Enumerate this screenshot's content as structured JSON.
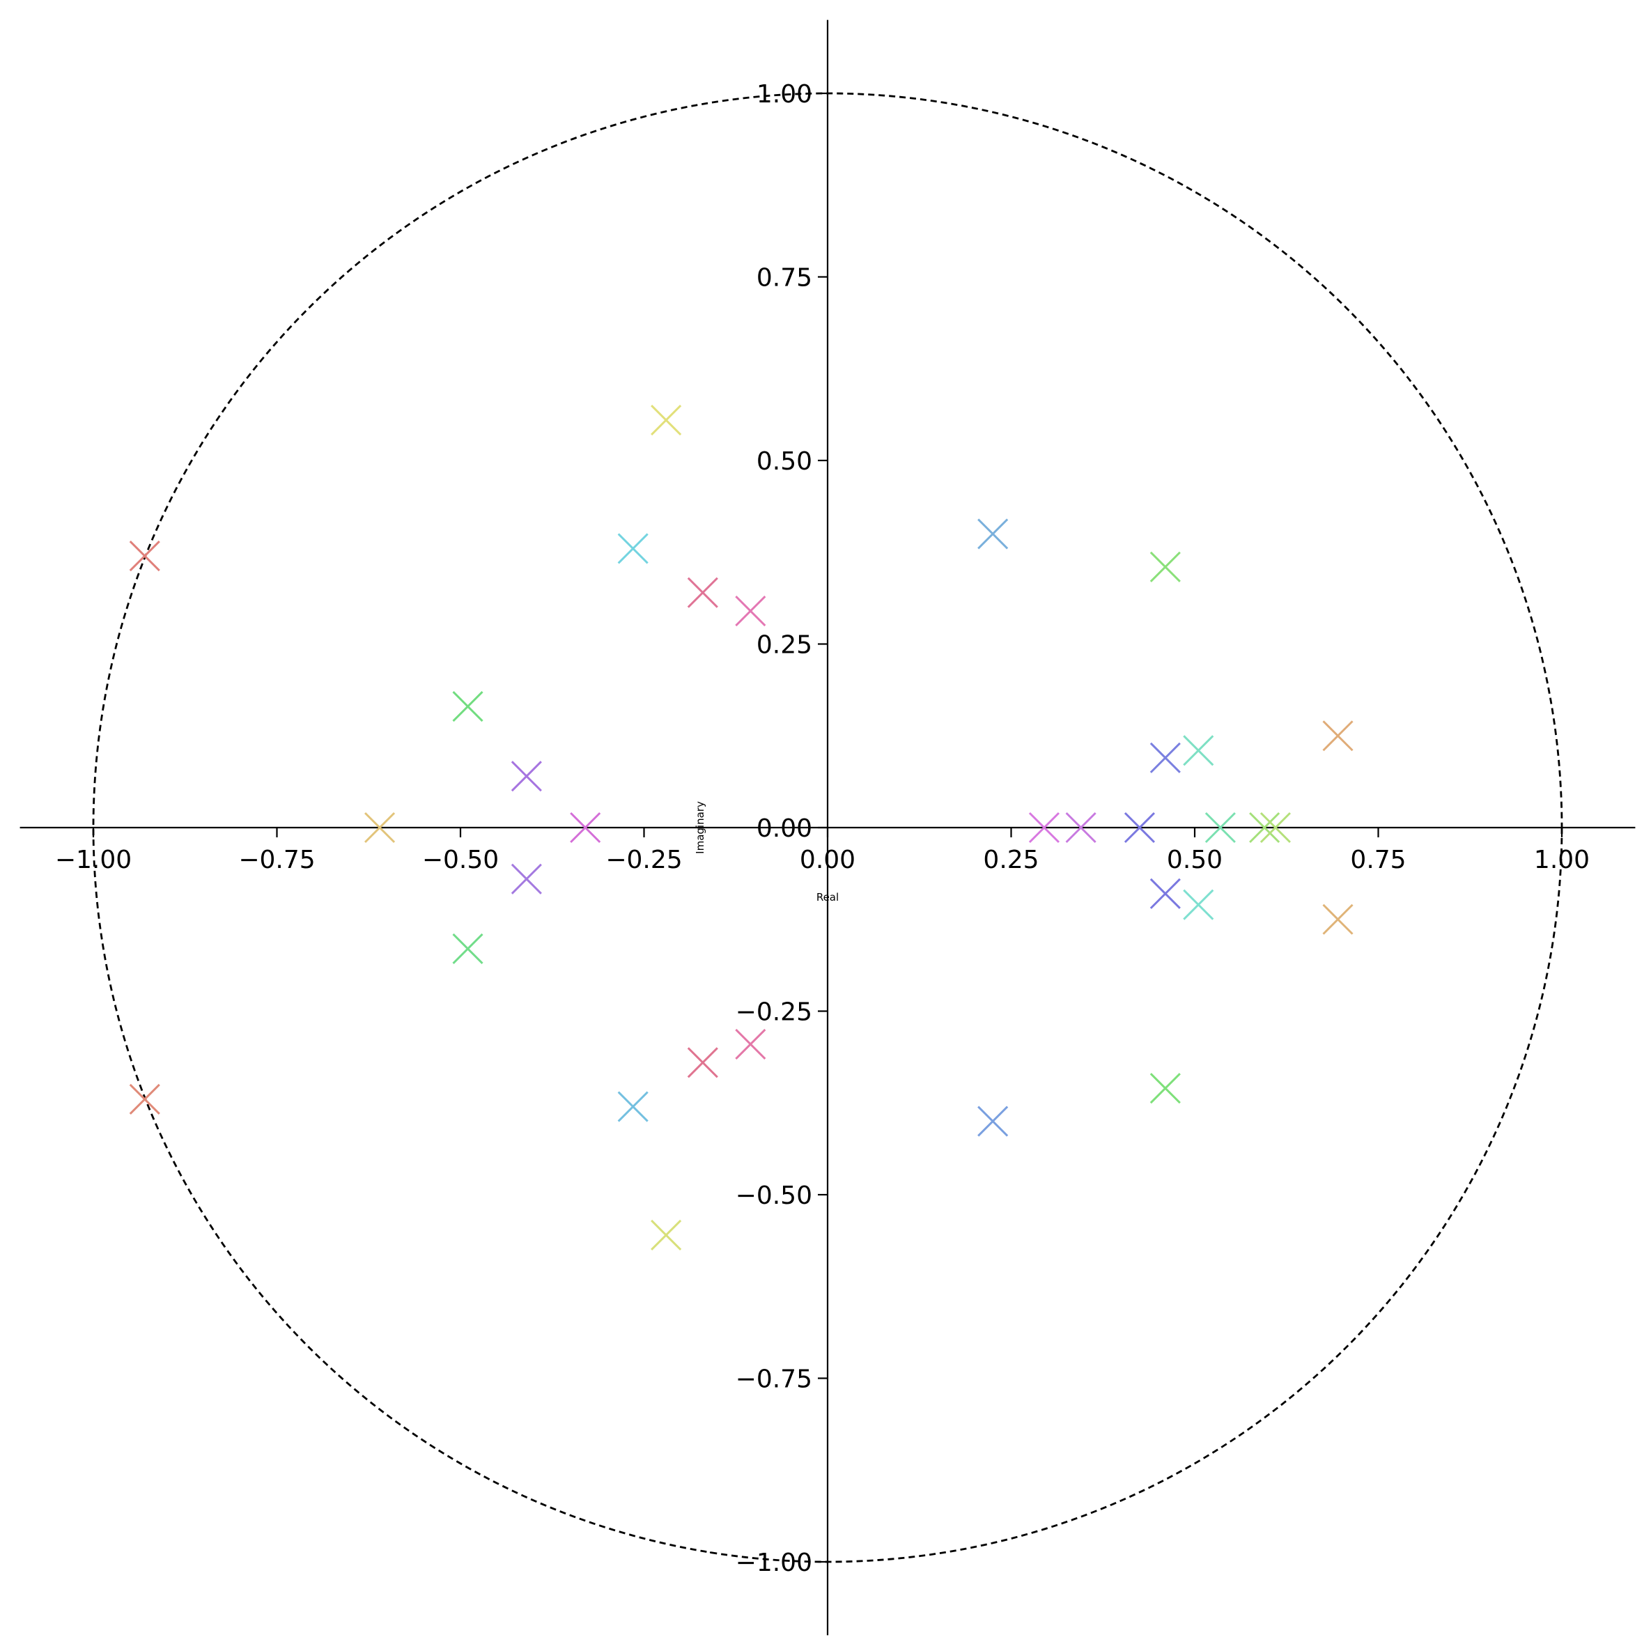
{
  "chart_data": {
    "type": "scatter",
    "title": "",
    "xlabel": "Real",
    "ylabel": "Imaginary",
    "xlim": [
      -1.1,
      1.1
    ],
    "ylim": [
      -1.1,
      1.1
    ],
    "xticks": [
      "−1.00",
      "−0.75",
      "−0.50",
      "−0.25",
      "0.00",
      "0.25",
      "0.50",
      "0.75",
      "1.00"
    ],
    "yticks": [
      "−1.00",
      "−0.75",
      "−0.50",
      "−0.25",
      "0.00",
      "0.25",
      "0.50",
      "0.75",
      "1.00"
    ],
    "xtick_values": [
      -1,
      -0.75,
      -0.5,
      -0.25,
      0,
      0.25,
      0.5,
      0.75,
      1
    ],
    "ytick_values": [
      -1,
      -0.75,
      -0.5,
      -0.25,
      0,
      0.25,
      0.5,
      0.75,
      1
    ],
    "grid": false,
    "legend": "none",
    "marker": "x",
    "reference": {
      "shape": "unit-circle",
      "radius": 1,
      "style": "dashed",
      "color": "#000000"
    },
    "points": [
      {
        "x": -0.93,
        "y": 0.37,
        "color": "#e0807a"
      },
      {
        "x": -0.93,
        "y": -0.37,
        "color": "#e08a78"
      },
      {
        "x": -0.61,
        "y": 0.0,
        "color": "#e2c47a"
      },
      {
        "x": -0.49,
        "y": 0.165,
        "color": "#72dd80"
      },
      {
        "x": -0.49,
        "y": -0.165,
        "color": "#72dd8a"
      },
      {
        "x": -0.41,
        "y": 0.07,
        "color": "#a674e0"
      },
      {
        "x": -0.41,
        "y": -0.07,
        "color": "#a47ae0"
      },
      {
        "x": -0.33,
        "y": 0.0,
        "color": "#d46ed8"
      },
      {
        "x": -0.265,
        "y": 0.38,
        "color": "#74d4e0"
      },
      {
        "x": -0.265,
        "y": -0.38,
        "color": "#74c0e0"
      },
      {
        "x": -0.22,
        "y": 0.555,
        "color": "#e2e07a"
      },
      {
        "x": -0.22,
        "y": -0.555,
        "color": "#d8e07a"
      },
      {
        "x": -0.17,
        "y": 0.32,
        "color": "#e07496"
      },
      {
        "x": -0.17,
        "y": -0.32,
        "color": "#e07490"
      },
      {
        "x": -0.105,
        "y": 0.295,
        "color": "#e478b4"
      },
      {
        "x": -0.105,
        "y": -0.295,
        "color": "#e478a8"
      },
      {
        "x": 0.225,
        "y": 0.4,
        "color": "#7ab0dc"
      },
      {
        "x": 0.225,
        "y": -0.4,
        "color": "#7aa0e0"
      },
      {
        "x": 0.295,
        "y": 0.0,
        "color": "#d878e0"
      },
      {
        "x": 0.345,
        "y": 0.0,
        "color": "#c87ae0"
      },
      {
        "x": 0.425,
        "y": 0.0,
        "color": "#7a78e0"
      },
      {
        "x": 0.46,
        "y": 0.095,
        "color": "#7a80e0"
      },
      {
        "x": 0.46,
        "y": -0.09,
        "color": "#7a78e0"
      },
      {
        "x": 0.46,
        "y": 0.355,
        "color": "#8ae07a"
      },
      {
        "x": 0.46,
        "y": -0.355,
        "color": "#7ee07a"
      },
      {
        "x": 0.505,
        "y": 0.105,
        "color": "#7ee0c4"
      },
      {
        "x": 0.505,
        "y": -0.105,
        "color": "#7ee0d0"
      },
      {
        "x": 0.535,
        "y": 0.0,
        "color": "#7ae0b0"
      },
      {
        "x": 0.595,
        "y": 0.0,
        "color": "#a4e07a"
      },
      {
        "x": 0.61,
        "y": 0.0,
        "color": "#b4e07a"
      },
      {
        "x": 0.695,
        "y": 0.125,
        "color": "#e0ac78"
      },
      {
        "x": 0.695,
        "y": -0.125,
        "color": "#e0b478"
      }
    ]
  }
}
